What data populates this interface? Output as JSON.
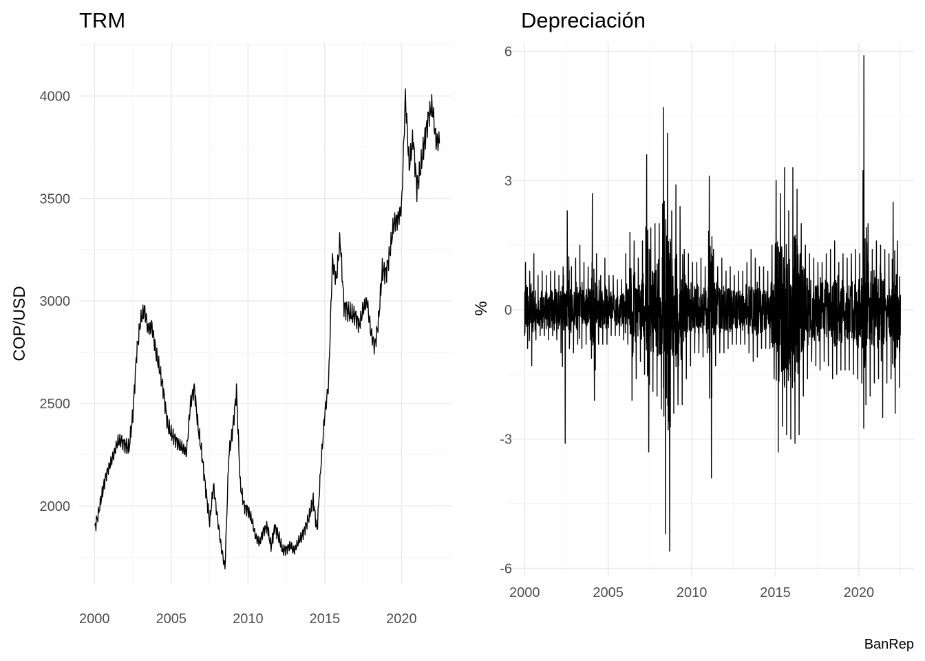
{
  "caption": "BanRep",
  "chart_data": [
    {
      "type": "line",
      "title": "TRM",
      "xlabel": "",
      "ylabel": "COP/USD",
      "xlim": [
        1999.0,
        2023.3
      ],
      "ylim": [
        1620,
        4260
      ],
      "x_ticks": [
        2000,
        2005,
        2010,
        2015,
        2020
      ],
      "y_ticks": [
        2000,
        2500,
        3000,
        3500,
        4000
      ],
      "grid": true,
      "series": [
        {
          "x": [
            2000.0,
            2000.25,
            2000.5,
            2000.75,
            2001.0,
            2001.25,
            2001.5,
            2001.75,
            2002.0,
            2002.25,
            2002.5,
            2002.75,
            2003.0,
            2003.25,
            2003.5,
            2003.75,
            2004.0,
            2004.25,
            2004.5,
            2004.75,
            2005.0,
            2005.25,
            2005.5,
            2005.75,
            2006.0,
            2006.25,
            2006.5,
            2006.75,
            2007.0,
            2007.25,
            2007.5,
            2007.75,
            2008.0,
            2008.25,
            2008.5,
            2008.75,
            2009.0,
            2009.25,
            2009.5,
            2009.75,
            2010.0,
            2010.25,
            2010.5,
            2010.75,
            2011.0,
            2011.25,
            2011.5,
            2011.75,
            2012.0,
            2012.25,
            2012.5,
            2012.75,
            2013.0,
            2013.25,
            2013.5,
            2013.75,
            2014.0,
            2014.25,
            2014.5,
            2014.75,
            2015.0,
            2015.25,
            2015.5,
            2015.75,
            2016.0,
            2016.25,
            2016.5,
            2016.75,
            2017.0,
            2017.25,
            2017.5,
            2017.75,
            2018.0,
            2018.25,
            2018.5,
            2018.75,
            2019.0,
            2019.25,
            2019.5,
            2019.75,
            2020.0,
            2020.25,
            2020.5,
            2020.75,
            2021.0,
            2021.25,
            2021.5,
            2021.75,
            2022.0,
            2022.25
          ],
          "values": [
            1890,
            1960,
            2060,
            2150,
            2200,
            2250,
            2310,
            2320,
            2300,
            2280,
            2450,
            2750,
            2900,
            2960,
            2860,
            2880,
            2750,
            2660,
            2560,
            2400,
            2350,
            2330,
            2300,
            2280,
            2260,
            2500,
            2580,
            2380,
            2250,
            2080,
            1920,
            2100,
            1950,
            1800,
            1700,
            2250,
            2370,
            2560,
            2100,
            2000,
            1980,
            1930,
            1850,
            1820,
            1880,
            1900,
            1800,
            1900,
            1850,
            1780,
            1790,
            1810,
            1780,
            1820,
            1850,
            1900,
            1950,
            2030,
            1880,
            2200,
            2450,
            2600,
            3200,
            3100,
            3300,
            2980,
            2950,
            2930,
            2930,
            2880,
            2960,
            3000,
            2850,
            2780,
            2900,
            3150,
            3140,
            3240,
            3380,
            3400,
            3450,
            4000,
            3650,
            3800,
            3550,
            3650,
            3780,
            3900,
            3950,
            3780
          ]
        }
      ]
    },
    {
      "type": "line",
      "title": "Depreciación",
      "xlabel": "",
      "ylabel": "%",
      "xlim": [
        1999.0,
        2023.3
      ],
      "ylim": [
        -6.2,
        6.2
      ],
      "x_ticks": [
        2000,
        2005,
        2010,
        2015,
        2020
      ],
      "y_ticks": [
        -6,
        -3,
        0,
        3,
        6
      ],
      "grid": true,
      "series": [
        {
          "x": [
            2000.0,
            2000.25,
            2000.5,
            2000.75,
            2001.0,
            2001.25,
            2001.5,
            2001.75,
            2002.0,
            2002.25,
            2002.5,
            2002.75,
            2003.0,
            2003.25,
            2003.5,
            2003.75,
            2004.0,
            2004.25,
            2004.5,
            2004.75,
            2005.0,
            2005.25,
            2005.5,
            2005.75,
            2006.0,
            2006.25,
            2006.5,
            2006.75,
            2007.0,
            2007.25,
            2007.5,
            2007.75,
            2008.0,
            2008.25,
            2008.5,
            2008.75,
            2009.0,
            2009.25,
            2009.5,
            2009.75,
            2010.0,
            2010.25,
            2010.5,
            2010.75,
            2011.0,
            2011.25,
            2011.5,
            2011.75,
            2012.0,
            2012.25,
            2012.5,
            2012.75,
            2013.0,
            2013.25,
            2013.5,
            2013.75,
            2014.0,
            2014.25,
            2014.5,
            2014.75,
            2015.0,
            2015.25,
            2015.5,
            2015.75,
            2016.0,
            2016.25,
            2016.5,
            2016.75,
            2017.0,
            2017.25,
            2017.5,
            2017.75,
            2018.0,
            2018.25,
            2018.5,
            2018.75,
            2019.0,
            2019.25,
            2019.5,
            2019.75,
            2020.0,
            2020.25,
            2020.5,
            2020.75,
            2021.0,
            2021.25,
            2021.5,
            2021.75,
            2022.0,
            2022.25
          ],
          "upper": [
            1.1,
            0.9,
            1.3,
            0.8,
            0.9,
            0.8,
            0.9,
            0.9,
            0.8,
            1.0,
            2.3,
            1.0,
            1.2,
            1.5,
            1.1,
            1.0,
            2.7,
            1.3,
            0.8,
            1.2,
            0.8,
            0.8,
            0.7,
            0.7,
            1.3,
            1.8,
            1.6,
            1.2,
            1.6,
            3.6,
            1.9,
            2.0,
            2.0,
            4.7,
            4.1,
            2.3,
            2.9,
            2.4,
            1.4,
            1.3,
            1.1,
            1.1,
            1.2,
            1.0,
            3.1,
            1.4,
            1.0,
            1.2,
            0.9,
            1.0,
            0.8,
            0.9,
            0.9,
            1.1,
            1.4,
            1.2,
            1.0,
            1.0,
            0.9,
            1.5,
            3.0,
            2.7,
            3.3,
            2.3,
            3.3,
            2.8,
            2.0,
            1.5,
            1.3,
            1.2,
            1.1,
            1.1,
            1.3,
            1.4,
            1.6,
            1.1,
            1.3,
            1.2,
            1.3,
            1.4,
            1.3,
            5.9,
            2.0,
            1.4,
            1.6,
            1.5,
            1.4,
            1.3,
            2.5,
            1.6
          ],
          "lower": [
            -0.9,
            -1.3,
            -0.7,
            -0.6,
            -0.6,
            -0.7,
            -0.6,
            -0.7,
            -1.0,
            -3.1,
            -0.9,
            -1.0,
            -0.8,
            -0.9,
            -0.8,
            -0.7,
            -2.1,
            -0.8,
            -0.8,
            -0.8,
            -0.6,
            -0.6,
            -0.6,
            -0.7,
            -0.8,
            -2.1,
            -1.6,
            -1.2,
            -1.5,
            -3.3,
            -1.9,
            -2.0,
            -2.3,
            -5.2,
            -5.6,
            -2.4,
            -2.2,
            -2.2,
            -1.6,
            -1.3,
            -1.0,
            -1.0,
            -1.1,
            -1.0,
            -3.9,
            -1.3,
            -1.0,
            -1.0,
            -0.9,
            -0.8,
            -0.8,
            -0.8,
            -0.8,
            -1.0,
            -1.2,
            -1.1,
            -0.9,
            -0.9,
            -0.9,
            -1.6,
            -3.3,
            -2.7,
            -2.9,
            -3.0,
            -3.1,
            -2.9,
            -2.0,
            -1.6,
            -1.2,
            -1.3,
            -1.4,
            -1.2,
            -1.3,
            -1.6,
            -1.5,
            -1.4,
            -1.4,
            -1.4,
            -1.5,
            -1.6,
            -1.7,
            -2.2,
            -2.0,
            -1.7,
            -1.6,
            -2.5,
            -1.7,
            -1.6,
            -2.4,
            -1.8
          ]
        }
      ]
    }
  ]
}
